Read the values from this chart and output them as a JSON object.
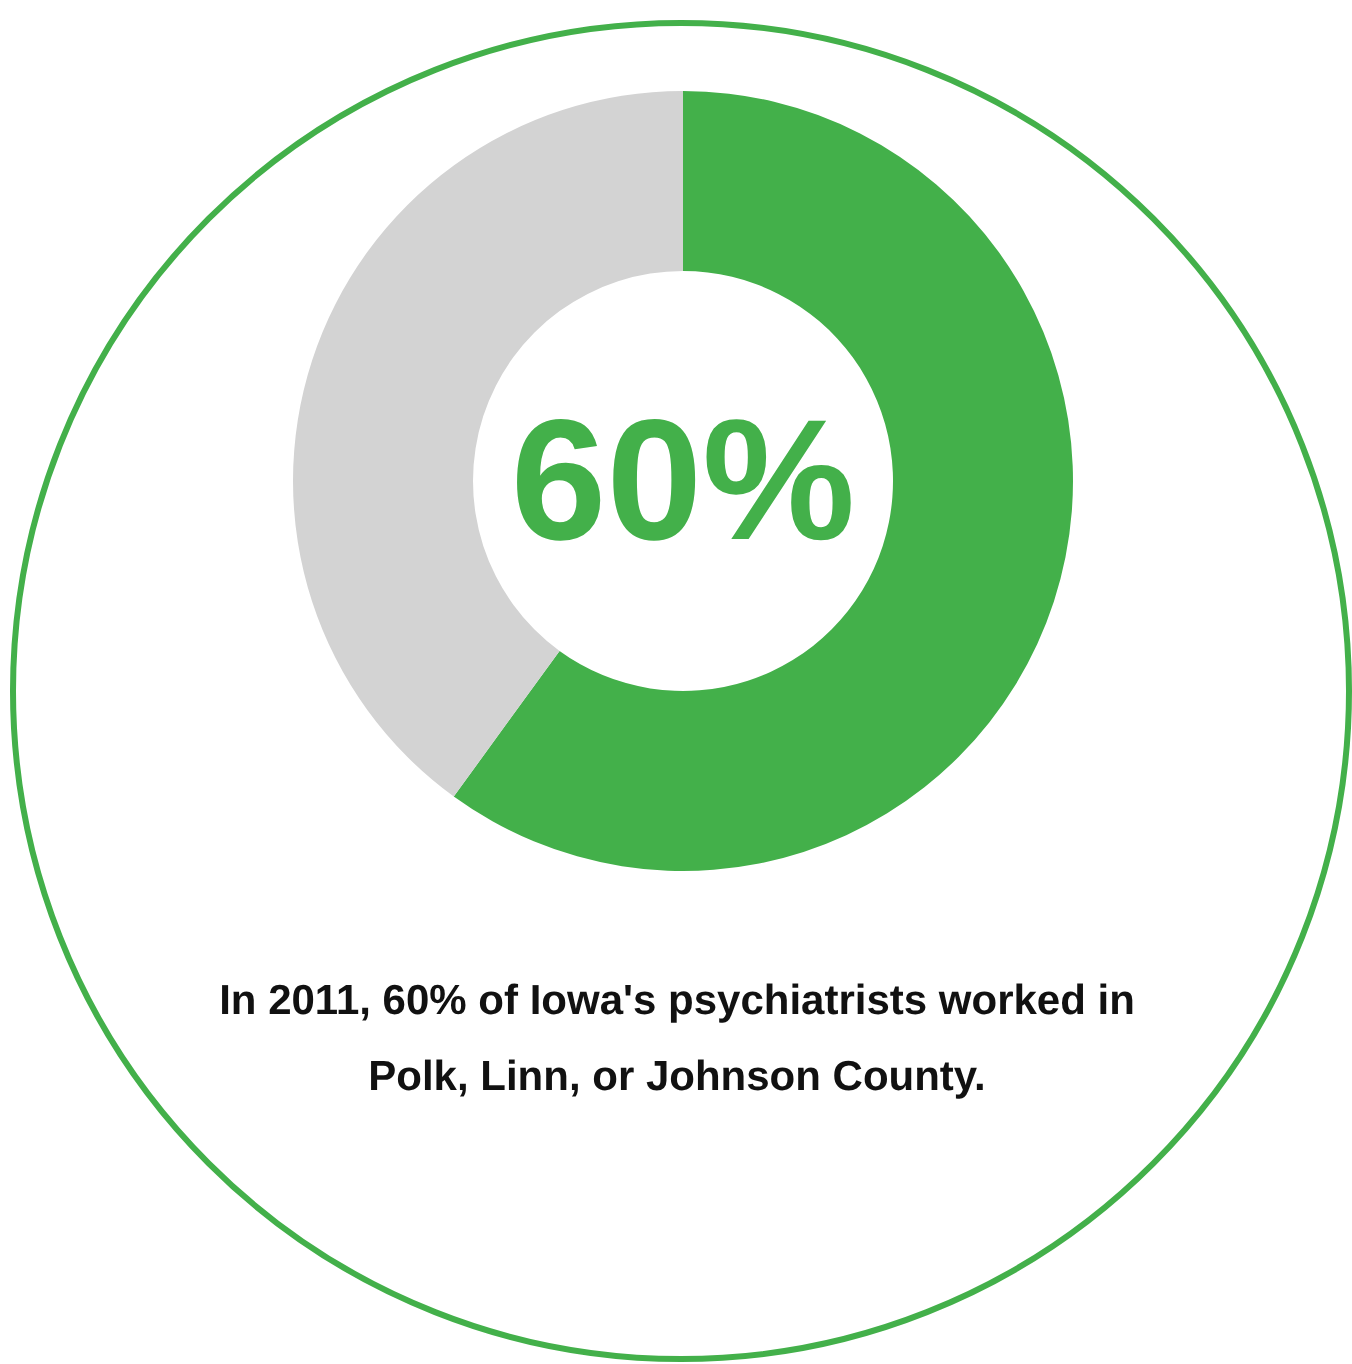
{
  "chart_data": {
    "type": "donut",
    "categories": [
      null,
      null
    ],
    "values": [
      60,
      40
    ],
    "colors": [
      "#43b04a",
      "#d3d3d3"
    ],
    "annotations": [
      "60%",
      "In 2011, 60% of Iowa's psychiatrists worked in\nPolk, Linn, or Johnson County."
    ]
  }
}
